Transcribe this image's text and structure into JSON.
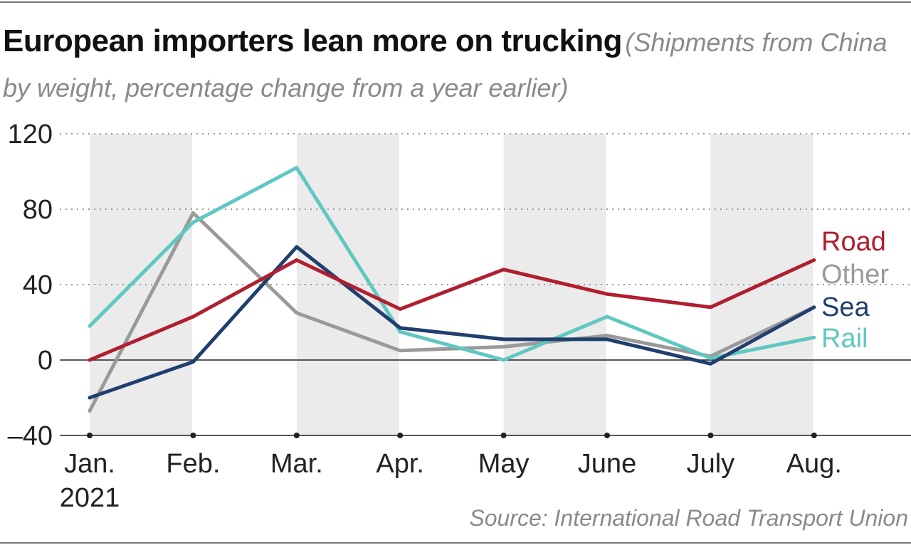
{
  "chart_data": {
    "type": "line",
    "title": "European importers lean more on trucking",
    "subtitle": "(Shipments from China by weight, percentage change from a year earlier)",
    "source": "Source: International Road Transport Union",
    "categories": [
      "Jan.",
      "Feb.",
      "Mar.",
      "Apr.",
      "May",
      "June",
      "July",
      "Aug."
    ],
    "category_sublabel": "2021",
    "ylim": [
      -40,
      120
    ],
    "yticks": [
      -40,
      0,
      40,
      80,
      120
    ],
    "ytick_labels": [
      "–40",
      "0",
      "40",
      "80",
      "120"
    ],
    "grid": "dotted-horizontal",
    "shaded_columns": [
      0,
      2,
      4,
      6
    ],
    "series": [
      {
        "name": "Road",
        "color": "#b01e2f",
        "values": [
          0,
          23,
          53,
          27,
          48,
          35,
          28,
          53
        ]
      },
      {
        "name": "Other",
        "color": "#9a9a9a",
        "values": [
          -27,
          78,
          25,
          5,
          7,
          13,
          2,
          28
        ]
      },
      {
        "name": "Sea",
        "color": "#1f3f6e",
        "values": [
          -20,
          -1,
          60,
          17,
          11,
          11,
          -2,
          28
        ]
      },
      {
        "name": "Rail",
        "color": "#5fc8c0",
        "values": [
          18,
          73,
          102,
          15,
          0,
          23,
          1,
          12
        ]
      }
    ]
  }
}
